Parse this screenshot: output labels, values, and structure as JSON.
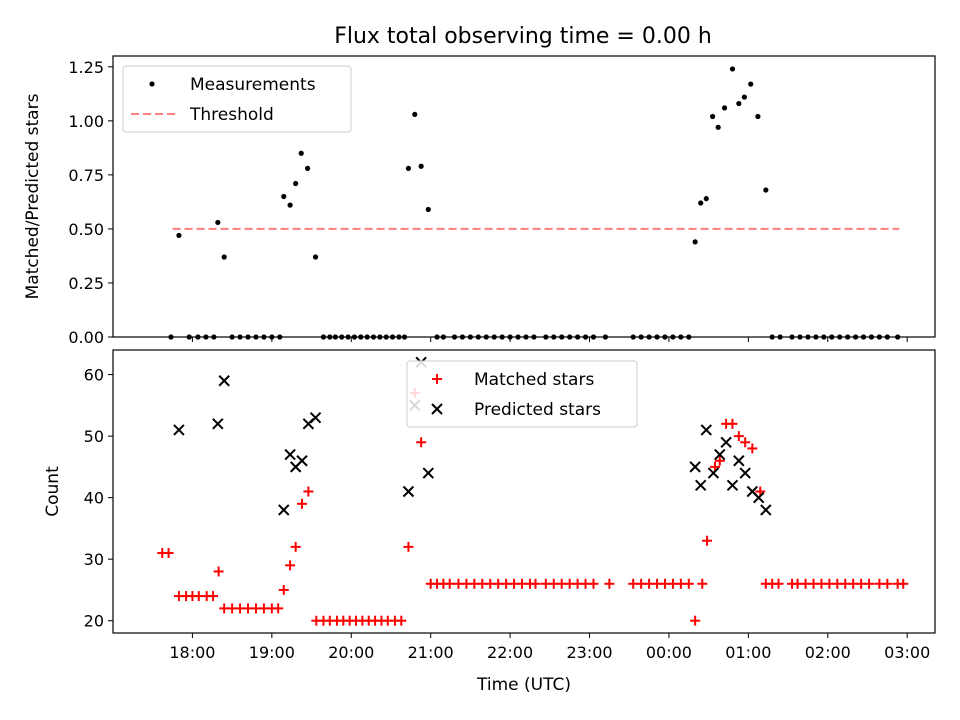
{
  "chart_data": [
    {
      "type": "scatter",
      "title": "Flux total observing time = 0.00 h",
      "xlabel": "",
      "ylabel": "Matched/Predicted stars",
      "ylim": [
        0,
        1.3
      ],
      "yticks": [
        0.0,
        0.25,
        0.5,
        0.75,
        1.0,
        1.25
      ],
      "ytick_labels": [
        "0.00",
        "0.25",
        "0.50",
        "0.75",
        "1.00",
        "1.25"
      ],
      "legend": {
        "location": "upper-left",
        "entries": [
          {
            "label": "Measurements",
            "marker": "dot",
            "color": "#000000"
          },
          {
            "label": "Threshold",
            "marker": "dashed-line",
            "color": "#ff7f7f"
          }
        ]
      },
      "threshold": {
        "value": 0.5,
        "x_start": 17.75,
        "x_end": 26.9
      },
      "series": [
        {
          "name": "Measurements",
          "color": "#000000",
          "points": [
            [
              17.73,
              0
            ],
            [
              17.83,
              0.47
            ],
            [
              17.96,
              0
            ],
            [
              18.07,
              0
            ],
            [
              18.17,
              0
            ],
            [
              18.27,
              0
            ],
            [
              18.32,
              0.53
            ],
            [
              18.4,
              0.37
            ],
            [
              18.5,
              0
            ],
            [
              18.6,
              0
            ],
            [
              18.7,
              0
            ],
            [
              18.8,
              0
            ],
            [
              18.9,
              0
            ],
            [
              19.0,
              0
            ],
            [
              19.1,
              0
            ],
            [
              19.15,
              0.65
            ],
            [
              19.23,
              0.61
            ],
            [
              19.3,
              0.71
            ],
            [
              19.37,
              0.85
            ],
            [
              19.45,
              0.78
            ],
            [
              19.55,
              0.37
            ],
            [
              19.65,
              0
            ],
            [
              19.73,
              0
            ],
            [
              19.8,
              0
            ],
            [
              19.88,
              0
            ],
            [
              19.96,
              0
            ],
            [
              20.04,
              0
            ],
            [
              20.12,
              0
            ],
            [
              20.2,
              0
            ],
            [
              20.28,
              0
            ],
            [
              20.36,
              0
            ],
            [
              20.44,
              0
            ],
            [
              20.52,
              0
            ],
            [
              20.6,
              0
            ],
            [
              20.67,
              0
            ],
            [
              20.72,
              0.78
            ],
            [
              20.8,
              1.03
            ],
            [
              20.88,
              0.79
            ],
            [
              20.97,
              0.59
            ],
            [
              21.08,
              0
            ],
            [
              21.16,
              0
            ],
            [
              21.3,
              0
            ],
            [
              21.4,
              0
            ],
            [
              21.5,
              0
            ],
            [
              21.6,
              0
            ],
            [
              21.7,
              0
            ],
            [
              21.8,
              0
            ],
            [
              21.9,
              0
            ],
            [
              22.0,
              0
            ],
            [
              22.1,
              0
            ],
            [
              22.2,
              0
            ],
            [
              22.3,
              0
            ],
            [
              22.45,
              0
            ],
            [
              22.55,
              0
            ],
            [
              22.65,
              0
            ],
            [
              22.75,
              0
            ],
            [
              22.85,
              0
            ],
            [
              22.95,
              0
            ],
            [
              23.05,
              0
            ],
            [
              23.2,
              0
            ],
            [
              23.55,
              0
            ],
            [
              23.65,
              0
            ],
            [
              23.75,
              0
            ],
            [
              23.85,
              0
            ],
            [
              23.95,
              0
            ],
            [
              24.05,
              0
            ],
            [
              24.15,
              0
            ],
            [
              24.25,
              0
            ],
            [
              24.33,
              0.44
            ],
            [
              24.4,
              0.62
            ],
            [
              24.47,
              0.64
            ],
            [
              24.55,
              1.02
            ],
            [
              24.62,
              0.97
            ],
            [
              24.7,
              1.06
            ],
            [
              24.8,
              1.24
            ],
            [
              24.88,
              1.08
            ],
            [
              24.95,
              1.11
            ],
            [
              25.03,
              1.17
            ],
            [
              25.12,
              1.02
            ],
            [
              25.22,
              0.68
            ],
            [
              25.3,
              0
            ],
            [
              25.4,
              0
            ],
            [
              25.55,
              0
            ],
            [
              25.65,
              0
            ],
            [
              25.75,
              0
            ],
            [
              25.85,
              0
            ],
            [
              25.95,
              0
            ],
            [
              26.05,
              0
            ],
            [
              26.15,
              0
            ],
            [
              26.25,
              0
            ],
            [
              26.35,
              0
            ],
            [
              26.45,
              0
            ],
            [
              26.55,
              0
            ],
            [
              26.65,
              0
            ],
            [
              26.75,
              0
            ],
            [
              26.88,
              0
            ]
          ]
        }
      ]
    },
    {
      "type": "scatter",
      "xlabel": "Time (UTC)",
      "ylabel": "Count",
      "ylim": [
        18,
        64
      ],
      "yticks": [
        20,
        30,
        40,
        50,
        60
      ],
      "ytick_labels": [
        "20",
        "30",
        "40",
        "50",
        "60"
      ],
      "xlim": [
        17.0,
        27.35
      ],
      "xticks": [
        18,
        19,
        20,
        21,
        22,
        23,
        24,
        25,
        26,
        27
      ],
      "xtick_labels": [
        "18:00",
        "19:00",
        "20:00",
        "21:00",
        "22:00",
        "23:00",
        "00:00",
        "01:00",
        "02:00",
        "03:00"
      ],
      "legend": {
        "location": "upper-center",
        "entries": [
          {
            "label": "Matched stars",
            "marker": "plus",
            "color": "#ff0000"
          },
          {
            "label": "Predicted stars",
            "marker": "x",
            "color": "#000000"
          }
        ]
      },
      "series": [
        {
          "name": "Matched stars",
          "color": "#ff0000",
          "points": [
            [
              17.62,
              31
            ],
            [
              17.7,
              31
            ],
            [
              17.83,
              24
            ],
            [
              17.92,
              24
            ],
            [
              18.0,
              24
            ],
            [
              18.08,
              24
            ],
            [
              18.18,
              24
            ],
            [
              18.26,
              24
            ],
            [
              18.33,
              28
            ],
            [
              18.4,
              22
            ],
            [
              18.5,
              22
            ],
            [
              18.6,
              22
            ],
            [
              18.7,
              22
            ],
            [
              18.8,
              22
            ],
            [
              18.9,
              22
            ],
            [
              19.0,
              22
            ],
            [
              19.08,
              22
            ],
            [
              19.15,
              25
            ],
            [
              19.23,
              29
            ],
            [
              19.3,
              32
            ],
            [
              19.38,
              39
            ],
            [
              19.46,
              41
            ],
            [
              19.56,
              20
            ],
            [
              19.65,
              20
            ],
            [
              19.73,
              20
            ],
            [
              19.82,
              20
            ],
            [
              19.9,
              20
            ],
            [
              19.98,
              20
            ],
            [
              20.06,
              20
            ],
            [
              20.14,
              20
            ],
            [
              20.22,
              20
            ],
            [
              20.3,
              20
            ],
            [
              20.38,
              20
            ],
            [
              20.46,
              20
            ],
            [
              20.55,
              20
            ],
            [
              20.63,
              20
            ],
            [
              20.72,
              32
            ],
            [
              20.8,
              57
            ],
            [
              20.88,
              49
            ],
            [
              21.0,
              26
            ],
            [
              21.08,
              26
            ],
            [
              21.16,
              26
            ],
            [
              21.24,
              26
            ],
            [
              21.35,
              26
            ],
            [
              21.45,
              26
            ],
            [
              21.55,
              26
            ],
            [
              21.65,
              26
            ],
            [
              21.75,
              26
            ],
            [
              21.85,
              26
            ],
            [
              21.95,
              26
            ],
            [
              22.05,
              26
            ],
            [
              22.15,
              26
            ],
            [
              22.25,
              26
            ],
            [
              22.32,
              26
            ],
            [
              22.45,
              26
            ],
            [
              22.55,
              26
            ],
            [
              22.65,
              26
            ],
            [
              22.75,
              26
            ],
            [
              22.85,
              26
            ],
            [
              22.95,
              26
            ],
            [
              23.05,
              26
            ],
            [
              23.25,
              26
            ],
            [
              23.55,
              26
            ],
            [
              23.65,
              26
            ],
            [
              23.75,
              26
            ],
            [
              23.85,
              26
            ],
            [
              23.95,
              26
            ],
            [
              24.05,
              26
            ],
            [
              24.15,
              26
            ],
            [
              24.25,
              26
            ],
            [
              24.33,
              20
            ],
            [
              24.42,
              26
            ],
            [
              24.48,
              33
            ],
            [
              24.58,
              45
            ],
            [
              24.64,
              46
            ],
            [
              24.72,
              52
            ],
            [
              24.8,
              52
            ],
            [
              24.88,
              50
            ],
            [
              24.96,
              49
            ],
            [
              25.05,
              48
            ],
            [
              25.15,
              41
            ],
            [
              25.22,
              26
            ],
            [
              25.3,
              26
            ],
            [
              25.38,
              26
            ],
            [
              25.55,
              26
            ],
            [
              25.62,
              26
            ],
            [
              25.72,
              26
            ],
            [
              25.82,
              26
            ],
            [
              25.92,
              26
            ],
            [
              26.02,
              26
            ],
            [
              26.12,
              26
            ],
            [
              26.22,
              26
            ],
            [
              26.32,
              26
            ],
            [
              26.42,
              26
            ],
            [
              26.52,
              26
            ],
            [
              26.65,
              26
            ],
            [
              26.75,
              26
            ],
            [
              26.88,
              26
            ],
            [
              26.95,
              26
            ]
          ]
        },
        {
          "name": "Predicted stars",
          "color": "#000000",
          "points": [
            [
              17.83,
              51
            ],
            [
              18.32,
              52
            ],
            [
              18.4,
              59
            ],
            [
              19.15,
              38
            ],
            [
              19.23,
              47
            ],
            [
              19.3,
              45
            ],
            [
              19.38,
              46
            ],
            [
              19.46,
              52
            ],
            [
              19.55,
              53
            ],
            [
              20.72,
              41
            ],
            [
              20.8,
              55
            ],
            [
              20.88,
              62
            ],
            [
              20.97,
              44
            ],
            [
              24.33,
              45
            ],
            [
              24.4,
              42
            ],
            [
              24.47,
              51
            ],
            [
              24.56,
              44
            ],
            [
              24.64,
              47
            ],
            [
              24.72,
              49
            ],
            [
              24.8,
              42
            ],
            [
              24.88,
              46
            ],
            [
              24.96,
              44
            ],
            [
              25.05,
              41
            ],
            [
              25.13,
              40
            ],
            [
              25.22,
              38
            ]
          ]
        }
      ]
    }
  ]
}
